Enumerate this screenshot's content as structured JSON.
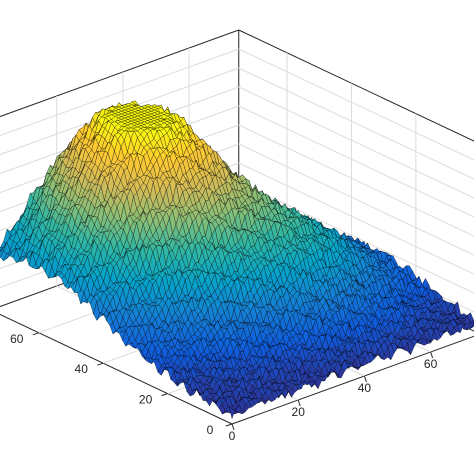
{
  "chart_data": {
    "type": "surface",
    "title": "",
    "xlabel": "",
    "ylabel": "",
    "zlabel": "",
    "colormap": "parula",
    "colormap_stops": [
      "#352a87",
      "#0f5cdd",
      "#1481d6",
      "#06a4ca",
      "#2eb7a4",
      "#87bf77",
      "#d1bb59",
      "#fec832",
      "#f9fb0e"
    ],
    "grid": true,
    "edge_color": "#000000",
    "background": "#ffffff",
    "axis_color": "#262626",
    "xlim": [
      0,
      75
    ],
    "ylim": [
      0,
      75
    ],
    "xticks": [
      {
        "value": 0,
        "label": "0"
      },
      {
        "value": 20,
        "label": "20"
      },
      {
        "value": 40,
        "label": "40"
      },
      {
        "value": 60,
        "label": "60"
      }
    ],
    "yticks": [
      {
        "value": 0,
        "label": "0"
      },
      {
        "value": 20,
        "label": "20"
      },
      {
        "value": 40,
        "label": "40"
      },
      {
        "value": 60,
        "label": "60"
      }
    ],
    "grid_size": 75,
    "surface_description": "noisy hill; maximum near the far corner, minimum at the left corner"
  }
}
